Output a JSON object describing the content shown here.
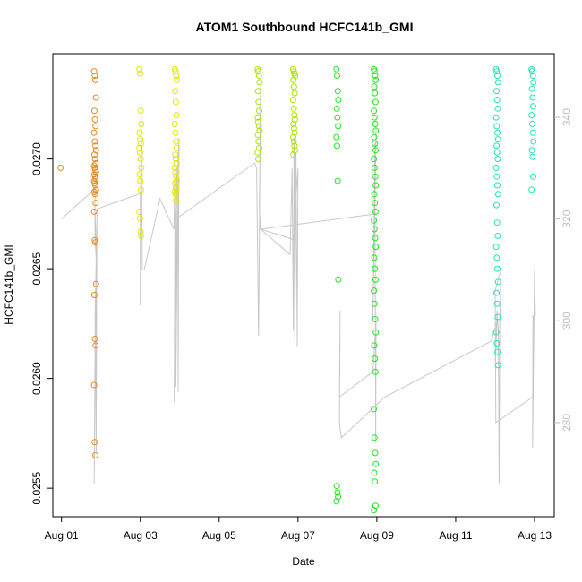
{
  "chart_data": {
    "type": "scatter",
    "title": "ATOM1 Southbound HCFC141b_GMI",
    "xlabel": "Date",
    "ylabel": "HCFC141b_GMI",
    "x_ticks": [
      "Aug 01",
      "Aug 03",
      "Aug 05",
      "Aug 07",
      "Aug 09",
      "Aug 11",
      "Aug 13"
    ],
    "x_range_days": [
      0.78,
      13.5
    ],
    "ylim": [
      0.02537,
      0.02748
    ],
    "y_ticks": [
      "0.0255",
      "0.0260",
      "0.0265",
      "0.0270"
    ],
    "y_tick_values": [
      0.0255,
      0.026,
      0.0265,
      0.027
    ],
    "y2lim": [
      261.5,
      352.5
    ],
    "y2_ticks": [
      "280",
      "300",
      "320",
      "340"
    ],
    "y2_tick_values": [
      280,
      300,
      320,
      340
    ],
    "y2_color": "#bdbdbd",
    "line_color": "#c8c8c8",
    "series": [
      {
        "color": "#e8891c",
        "flights": [
          {
            "x": 1.0,
            "ys": [
              0.02696
            ]
          },
          {
            "x": 1.85,
            "ys": [
              0.0274,
              0.02738,
              0.02736,
              0.02728,
              0.02722,
              0.02718,
              0.02715,
              0.02712,
              0.02708,
              0.02706,
              0.02704,
              0.02702,
              0.027,
              0.02698,
              0.02697,
              0.02696,
              0.02695,
              0.02694,
              0.02693,
              0.02692,
              0.02691,
              0.0269,
              0.02689,
              0.02688,
              0.02686,
              0.02685,
              0.02684,
              0.0268,
              0.02676,
              0.02663,
              0.02662,
              0.02643,
              0.02638,
              0.02618,
              0.02615,
              0.02597,
              0.02571,
              0.02565
            ]
          }
        ]
      },
      {
        "color": "#e6e600",
        "flights": [
          {
            "x": 3.0,
            "ys": [
              0.02741,
              0.02739,
              0.02722,
              0.02716,
              0.02712,
              0.02709,
              0.02707,
              0.02705,
              0.02703,
              0.027,
              0.02696,
              0.02693,
              0.0269,
              0.02686,
              0.02676,
              0.02673,
              0.02667,
              0.02665
            ]
          },
          {
            "x": 3.9,
            "ys": [
              0.02741,
              0.0274,
              0.02738,
              0.02736,
              0.02731,
              0.02726,
              0.0272,
              0.02716,
              0.02712,
              0.02708,
              0.02705,
              0.02702,
              0.027,
              0.02698,
              0.02696,
              0.02694,
              0.02692,
              0.0269,
              0.02689,
              0.02687,
              0.02686,
              0.02685,
              0.02684,
              0.02681
            ]
          }
        ]
      },
      {
        "color": "#a8e600",
        "flights": [
          {
            "x": 6.0,
            "ys": [
              0.02741,
              0.0274,
              0.02738,
              0.02735,
              0.02731,
              0.02726,
              0.02722,
              0.02719,
              0.02717,
              0.02715,
              0.02713,
              0.02711,
              0.02708,
              0.02705,
              0.02703,
              0.027
            ]
          },
          {
            "x": 6.9,
            "ys": [
              0.02741,
              0.0274,
              0.02739,
              0.02738,
              0.02736,
              0.02733,
              0.0273,
              0.02727,
              0.02723,
              0.0272,
              0.02718,
              0.02716,
              0.02714,
              0.02712,
              0.0271,
              0.02708,
              0.02706,
              0.02704,
              0.02702
            ]
          }
        ]
      },
      {
        "color": "#22e622",
        "flights": [
          {
            "x": 8.0,
            "ys": [
              0.02741,
              0.02738,
              0.02731,
              0.02727,
              0.02723,
              0.02719,
              0.02715,
              0.0271,
              0.02706,
              0.0269,
              0.02645,
              0.02551,
              0.02548,
              0.02546,
              0.02544
            ]
          },
          {
            "x": 8.95,
            "ys": [
              0.02741,
              0.0274,
              0.02738,
              0.02736,
              0.02733,
              0.0273,
              0.02726,
              0.02722,
              0.02719,
              0.02716,
              0.02713,
              0.0271,
              0.02707,
              0.02704,
              0.027,
              0.02696,
              0.02692,
              0.02688,
              0.02684,
              0.0268,
              0.02676,
              0.02672,
              0.02668,
              0.02664,
              0.0266,
              0.02655,
              0.0265,
              0.02645,
              0.0264,
              0.02634,
              0.02627,
              0.02621,
              0.02615,
              0.02609,
              0.02603,
              0.02586,
              0.02573,
              0.02566,
              0.02561,
              0.02557,
              0.02553,
              0.02542,
              0.0254
            ]
          }
        ]
      },
      {
        "color": "#1ee6b4",
        "flights": [
          {
            "x": 12.05,
            "ys": [
              0.02741,
              0.0274,
              0.02738,
              0.02735,
              0.02731,
              0.02727,
              0.02723,
              0.02719,
              0.02715,
              0.02712,
              0.02709,
              0.02706,
              0.02703,
              0.027,
              0.02696,
              0.02692,
              0.02688,
              0.02684,
              0.02679,
              0.02671,
              0.02665,
              0.0266,
              0.02655,
              0.0265,
              0.02644,
              0.02639,
              0.02634,
              0.02628,
              0.02621,
              0.02616,
              0.02612,
              0.02606
            ]
          },
          {
            "x": 12.95,
            "ys": [
              0.02741,
              0.0274,
              0.02738,
              0.02735,
              0.02732,
              0.02728,
              0.02724,
              0.0272,
              0.02716,
              0.02712,
              0.02708,
              0.02704,
              0.02701,
              0.02692,
              0.02686
            ]
          }
        ]
      }
    ],
    "altitude_path": [
      [
        1.0,
        320
      ],
      [
        1.85,
        326
      ],
      [
        1.85,
        316
      ],
      [
        1.9,
        310
      ],
      [
        1.85,
        322
      ],
      [
        1.88,
        312
      ],
      [
        1.85,
        300
      ],
      [
        1.9,
        318
      ],
      [
        1.85,
        288
      ],
      [
        1.83,
        268
      ],
      [
        1.86,
        306
      ],
      [
        1.88,
        274
      ],
      [
        1.9,
        322
      ],
      [
        3.0,
        325
      ],
      [
        3.0,
        303
      ],
      [
        3.02,
        343
      ],
      [
        3.05,
        310
      ],
      [
        3.1,
        310
      ],
      [
        3.5,
        324
      ],
      [
        3.85,
        318
      ],
      [
        3.88,
        330
      ],
      [
        3.86,
        284
      ],
      [
        3.92,
        330
      ],
      [
        3.9,
        287
      ],
      [
        3.95,
        328
      ],
      [
        3.96,
        286
      ],
      [
        3.98,
        336
      ],
      [
        3.9,
        320
      ],
      [
        5.9,
        331
      ],
      [
        5.95,
        330
      ],
      [
        6.0,
        297
      ],
      [
        6.05,
        346
      ],
      [
        6.02,
        322
      ],
      [
        6.05,
        318
      ],
      [
        6.8,
        313
      ],
      [
        6.85,
        330
      ],
      [
        6.88,
        298
      ],
      [
        6.9,
        336
      ],
      [
        6.92,
        296
      ],
      [
        6.95,
        333
      ],
      [
        6.98,
        295
      ],
      [
        7.0,
        330
      ],
      [
        6.88,
        316
      ],
      [
        6.05,
        318
      ],
      [
        8.0,
        320
      ],
      [
        8.95,
        321
      ],
      [
        8.98,
        338
      ],
      [
        8.9,
        300
      ],
      [
        8.95,
        335
      ],
      [
        8.97,
        276
      ],
      [
        8.98,
        300
      ],
      [
        8.9,
        290
      ],
      [
        8.05,
        285
      ],
      [
        8.07,
        302
      ],
      [
        8.05,
        280
      ],
      [
        8.1,
        277
      ],
      [
        9.2,
        285
      ],
      [
        11.9,
        296
      ],
      [
        12.05,
        300
      ],
      [
        12.0,
        292
      ],
      [
        12.05,
        302
      ],
      [
        12.08,
        298
      ],
      [
        12.1,
        268
      ],
      [
        12.12,
        300
      ],
      [
        12.15,
        310
      ],
      [
        12.0,
        306
      ],
      [
        12.02,
        280
      ],
      [
        12.95,
        285
      ],
      [
        12.98,
        301
      ],
      [
        12.96,
        301
      ],
      [
        12.95,
        275
      ],
      [
        13.0,
        310
      ],
      [
        13.02,
        301
      ]
    ]
  }
}
